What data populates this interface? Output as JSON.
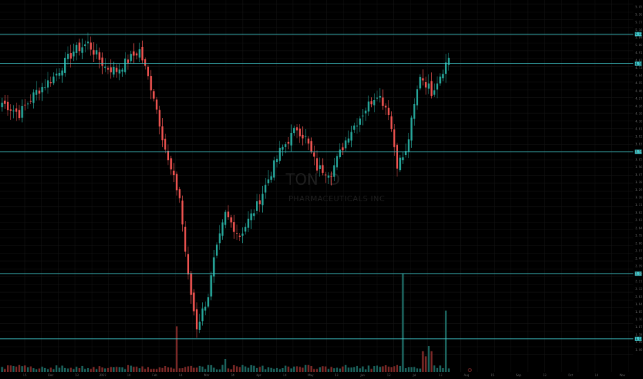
{
  "symbol": {
    "ticker": "TON",
    "exchange_suffix": "D",
    "name": "PHARMACEUTICALS INC"
  },
  "colors": {
    "background": "#000000",
    "grid": "#141414",
    "up": "#26a69a",
    "down": "#ef5350",
    "level_line": "#3fc6c9",
    "axis_text": "#6b6b6b",
    "event_marker": "#b23a3a"
  },
  "chart_data": {
    "type": "candlestick",
    "ylim": [
      1.3,
      5.5
    ],
    "price_ticks": [
      5.45,
      5.36,
      5.27,
      5.18,
      5.09,
      5.0,
      4.91,
      4.82,
      4.73,
      4.64,
      4.55,
      4.46,
      4.37,
      4.28,
      4.19,
      4.1,
      4.01,
      3.92,
      3.83,
      3.74,
      3.65,
      3.56,
      3.47,
      3.38,
      3.29,
      3.2,
      3.11,
      3.02,
      2.93,
      2.84,
      2.75,
      2.66,
      2.57,
      2.48,
      2.39,
      2.3,
      2.21,
      2.12,
      2.03,
      1.94,
      1.85,
      1.76,
      1.67,
      1.58,
      1.49,
      1.4
    ],
    "date_ticks": [
      "15",
      "Dec",
      "13",
      "2022",
      "14",
      "Feb",
      "14",
      "Mar",
      "14",
      "Apr",
      "14",
      "May",
      "13",
      "Jun",
      "13",
      "Jul",
      "13",
      "Aug",
      "15",
      "Sep",
      "13",
      "Oct",
      "14",
      "Nov"
    ],
    "levels": [
      5.13,
      4.78,
      3.74,
      2.3,
      1.53
    ],
    "anchors": [
      [
        0,
        4.32
      ],
      [
        6,
        4.19
      ],
      [
        12,
        4.45
      ],
      [
        18,
        4.62
      ],
      [
        25,
        4.93
      ],
      [
        30,
        5.02
      ],
      [
        36,
        4.74
      ],
      [
        40,
        4.7
      ],
      [
        48,
        4.94
      ],
      [
        53,
        4.4
      ],
      [
        58,
        3.62
      ],
      [
        62,
        3.2
      ],
      [
        65,
        2.25
      ],
      [
        68,
        1.67
      ],
      [
        72,
        2.05
      ],
      [
        74,
        2.45
      ],
      [
        78,
        3.0
      ],
      [
        83,
        2.75
      ],
      [
        89,
        3.1
      ],
      [
        97,
        3.74
      ],
      [
        103,
        4.02
      ],
      [
        106,
        3.9
      ],
      [
        110,
        3.55
      ],
      [
        115,
        3.5
      ],
      [
        121,
        3.95
      ],
      [
        127,
        4.25
      ],
      [
        131,
        4.44
      ],
      [
        135,
        4.22
      ],
      [
        138,
        3.6
      ],
      [
        141,
        3.72
      ],
      [
        146,
        4.65
      ],
      [
        150,
        4.45
      ],
      [
        156,
        4.85
      ]
    ],
    "volume_spikes": {
      "61": 0.35,
      "78": 0.1,
      "140": 0.75,
      "147": 0.16,
      "148": 0.12,
      "149": 0.2,
      "150": 0.16,
      "155": 0.47,
      "158": 0.14
    }
  }
}
